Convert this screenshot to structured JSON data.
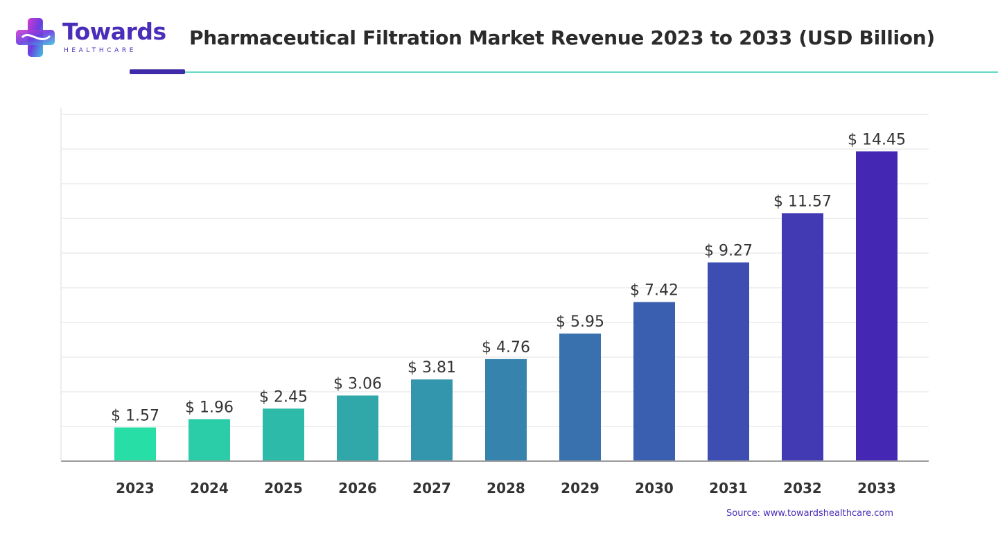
{
  "header": {
    "logo_text": "Towards",
    "logo_sub": "HEALTHCARE",
    "title": "Pharmaceutical Filtration Market Revenue 2023 to 2033 (USD Billion)"
  },
  "source": "Source: www.towardshealthcare.com",
  "colors": {
    "accent_dark": "#3f2aa8",
    "accent_light": "#5ed9c2",
    "bar_start": "#27dfa6",
    "bar_end": "#4428b4"
  },
  "chart_data": {
    "type": "bar",
    "title": "Pharmaceutical Filtration Market Revenue 2023 to 2033 (USD Billion)",
    "xlabel": "",
    "ylabel": "",
    "categories": [
      "2023",
      "2024",
      "2025",
      "2026",
      "2027",
      "2028",
      "2029",
      "2030",
      "2031",
      "2032",
      "2033"
    ],
    "values": [
      1.57,
      1.96,
      2.45,
      3.06,
      3.81,
      4.76,
      5.95,
      7.42,
      9.27,
      11.57,
      14.45
    ],
    "value_labels": [
      "$ 1.57",
      "$ 1.96",
      "$ 2.45",
      "$ 3.06",
      "$ 3.81",
      "$ 4.76",
      "$ 5.95",
      "$ 7.42",
      "$ 9.27",
      "$ 11.57",
      "$ 14.45"
    ],
    "ylim": [
      0,
      16.5
    ],
    "grid": true,
    "legend": "none"
  }
}
